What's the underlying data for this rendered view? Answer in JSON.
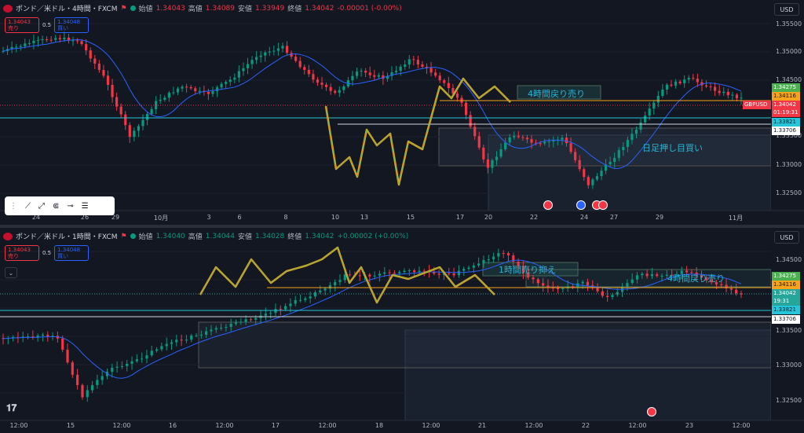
{
  "pane1": {
    "header": {
      "symbol": "ポンド／米ドル・4時間・FXCM",
      "open_label": "始値",
      "open_value": "1.34043",
      "high_label": "高値",
      "high_value": "1.34089",
      "low_label": "安値",
      "low_value": "1.33949",
      "close_label": "終値",
      "close_value": "1.34042",
      "change": "-0.00001 (-0.00%)"
    },
    "trade": {
      "sell_price": "1.34043",
      "sell_label": "売り",
      "spread": "0.5",
      "buy_price": "1.34048",
      "buy_label": "買い"
    },
    "currency": "USD",
    "price_ticks": [
      "1.35500",
      "1.35000",
      "1.34500",
      "1.33500",
      "1.33000",
      "1.32500"
    ],
    "price_tags": {
      "level1": "1.34275",
      "level2": "1.34116",
      "symbol_tag": "GBPUSD",
      "current": "1.34042",
      "countdown": "01:19:31",
      "level3": "1.33821",
      "level4": "1.33706"
    },
    "time_labels": [
      "24",
      "26",
      "29",
      "10月",
      "3",
      "6",
      "8",
      "10",
      "13",
      "15",
      "17",
      "20",
      "22",
      "24",
      "27",
      "29",
      "11月"
    ],
    "annotations": {
      "sell_zone": "4時間戻り売り",
      "buy_zone": "日足押し目買い"
    }
  },
  "pane2": {
    "header": {
      "symbol": "ポンド／米ドル・1時間・FXCM",
      "open_label": "始値",
      "open_value": "1.34040",
      "high_label": "高値",
      "high_value": "1.34044",
      "low_label": "安値",
      "low_value": "1.34028",
      "close_label": "終値",
      "close_value": "1.34042",
      "change": "+0.00002 (+0.00%)"
    },
    "trade": {
      "sell_price": "1.34043",
      "sell_label": "売り",
      "spread": "0.5",
      "buy_price": "1.34048",
      "buy_label": "買い"
    },
    "currency": "USD",
    "price_ticks": [
      "1.34500",
      "1.33500",
      "1.33000",
      "1.32500"
    ],
    "price_tags": {
      "level1": "1.34275",
      "level2": "1.34116",
      "current": "1.34042",
      "countdown": "19:31",
      "level3": "1.33821",
      "level4": "1.33706"
    },
    "time_labels": [
      "12:00",
      "15",
      "12:00",
      "16",
      "12:00",
      "17",
      "12:00",
      "18",
      "12:00",
      "21",
      "12:00",
      "22",
      "12:00",
      "23",
      "12:00"
    ],
    "annotations": {
      "h1_zone": "1時間売り抑え",
      "h4_zone": "4時間戻り売り"
    }
  },
  "colors": {
    "background": "#131722",
    "bull": "#089981",
    "bear": "#f23645",
    "ma": "#2962ff",
    "zigzag": "#f0a020",
    "annotation": "#2ab6d6"
  }
}
